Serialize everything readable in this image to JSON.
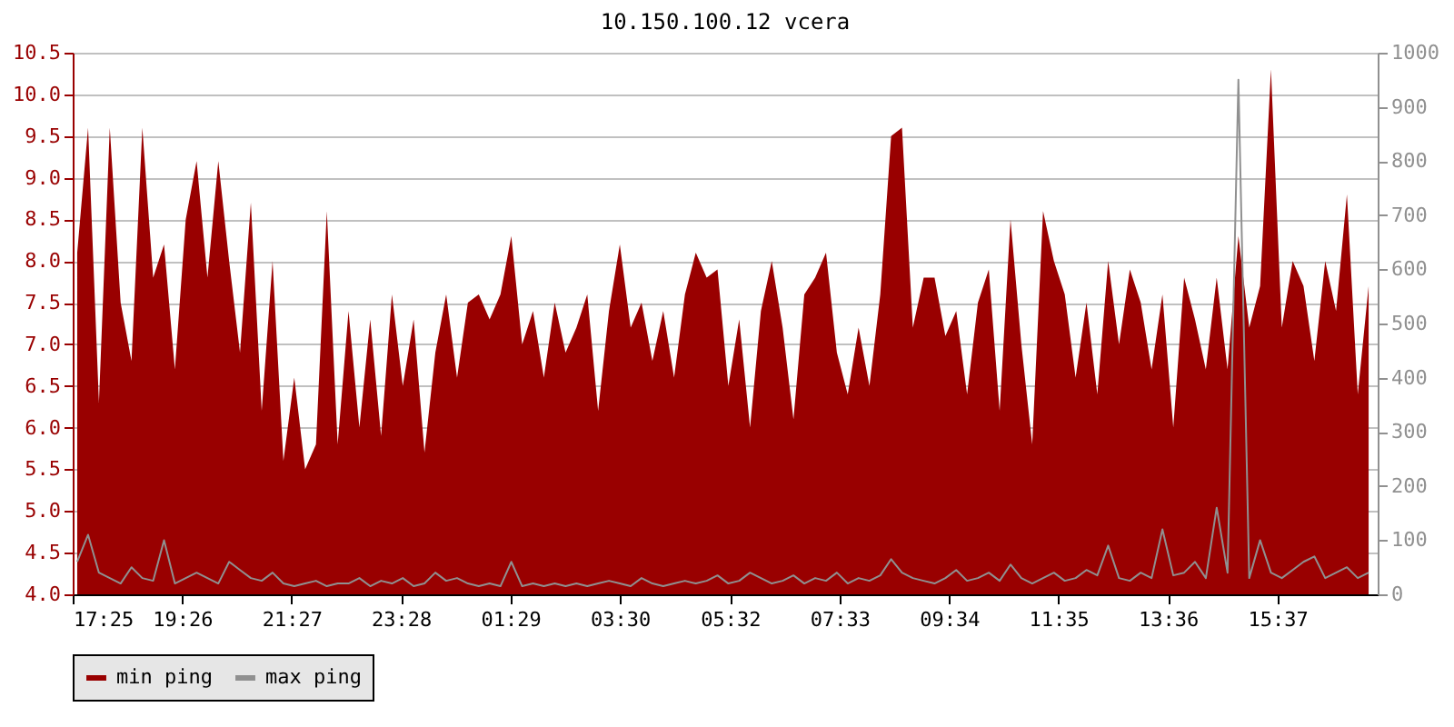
{
  "chart_data": {
    "type": "area",
    "title": "10.150.100.12 vcera",
    "x": [
      "--01-01T17:30",
      "--01-01T17:42",
      "--01-01T17:54",
      "--01-01T18:06",
      "--01-01T18:18",
      "--01-01T18:30",
      "--01-01T18:42",
      "--01-01T18:54",
      "--01-01T19:06",
      "--01-01T19:18",
      "--01-01T19:30",
      "--01-01T19:42",
      "--01-01T19:54",
      "--01-01T20:06",
      "--01-01T20:18",
      "--01-01T20:30",
      "--01-01T20:42",
      "--01-01T20:54",
      "--01-01T21:06",
      "--01-01T21:18",
      "--01-01T21:30",
      "--01-01T21:42",
      "--01-01T21:54",
      "--01-01T22:06",
      "--01-01T22:18",
      "--01-01T22:30",
      "--01-01T22:42",
      "--01-01T22:54",
      "--01-01T23:06",
      "--01-01T23:18",
      "--01-01T23:30",
      "--01-01T23:42",
      "--01-01T23:54",
      "--01-02T00:06",
      "--01-02T00:18",
      "--01-02T00:30",
      "--01-02T00:42",
      "--01-02T00:54",
      "--01-02T01:06",
      "--01-02T01:18",
      "--01-02T01:30",
      "--01-02T01:42",
      "--01-02T01:54",
      "--01-02T02:06",
      "--01-02T02:18",
      "--01-02T02:30",
      "--01-02T02:42",
      "--01-02T02:54",
      "--01-02T03:06",
      "--01-02T03:18",
      "--01-02T03:30",
      "--01-02T03:42",
      "--01-02T03:54",
      "--01-02T04:06",
      "--01-02T04:18",
      "--01-02T04:30",
      "--01-02T04:42",
      "--01-02T04:54",
      "--01-02T05:06",
      "--01-02T05:18",
      "--01-02T05:30",
      "--01-02T05:42",
      "--01-02T05:54",
      "--01-02T06:06",
      "--01-02T06:18",
      "--01-02T06:30",
      "--01-02T06:42",
      "--01-02T06:54",
      "--01-02T07:06",
      "--01-02T07:18",
      "--01-02T07:30",
      "--01-02T07:42",
      "--01-02T07:54",
      "--01-02T08:06",
      "--01-02T08:18",
      "--01-02T08:30",
      "--01-02T08:42",
      "--01-02T08:54",
      "--01-02T09:06",
      "--01-02T09:18",
      "--01-02T09:30",
      "--01-02T09:42",
      "--01-02T09:54",
      "--01-02T10:06",
      "--01-02T10:18",
      "--01-02T10:30",
      "--01-02T10:42",
      "--01-02T10:54",
      "--01-02T11:06",
      "--01-02T11:18",
      "--01-02T11:30",
      "--01-02T11:42",
      "--01-02T11:54",
      "--01-02T12:06",
      "--01-02T12:18",
      "--01-02T12:30",
      "--01-02T12:42",
      "--01-02T12:54",
      "--01-02T13:06",
      "--01-02T13:18",
      "--01-02T13:30",
      "--01-02T13:42",
      "--01-02T13:54",
      "--01-02T14:06",
      "--01-02T14:18",
      "--01-02T14:30",
      "--01-02T14:42",
      "--01-02T14:54",
      "--01-02T15:06",
      "--01-02T15:18",
      "--01-02T15:30",
      "--01-02T15:42",
      "--01-02T15:54",
      "--01-02T16:06",
      "--01-02T16:18",
      "--01-02T16:30",
      "--01-02T16:42",
      "--01-02T16:54",
      "--01-02T17:06",
      "--01-02T17:18"
    ],
    "series": [
      {
        "name": "min ping",
        "color": "#990000",
        "values": [
          8.1,
          9.6,
          6.3,
          9.6,
          7.5,
          6.8,
          9.6,
          7.8,
          8.2,
          6.7,
          8.5,
          9.2,
          7.8,
          9.2,
          8.0,
          6.9,
          8.7,
          6.2,
          8.0,
          5.6,
          6.6,
          5.5,
          5.8,
          8.6,
          5.8,
          7.4,
          6.0,
          7.3,
          5.9,
          7.6,
          6.5,
          7.3,
          5.7,
          6.9,
          7.6,
          6.6,
          7.5,
          7.6,
          7.3,
          7.6,
          8.3,
          7.0,
          7.4,
          6.6,
          7.5,
          6.9,
          7.2,
          7.6,
          6.2,
          7.4,
          8.2,
          7.2,
          7.5,
          6.8,
          7.4,
          6.6,
          7.6,
          8.1,
          7.8,
          7.9,
          6.5,
          7.3,
          6.0,
          7.4,
          8.0,
          7.2,
          6.1,
          7.6,
          7.8,
          8.1,
          6.9,
          6.4,
          7.2,
          6.5,
          7.6,
          9.5,
          9.6,
          7.2,
          7.8,
          7.8,
          7.1,
          7.4,
          6.4,
          7.5,
          7.9,
          6.2,
          8.5,
          7.0,
          5.8,
          8.6,
          8.0,
          7.6,
          6.6,
          7.5,
          6.4,
          8.0,
          7.0,
          7.9,
          7.5,
          6.7,
          7.6,
          6.0,
          7.8,
          7.3,
          6.7,
          7.8,
          6.7,
          8.3,
          7.2,
          7.7,
          10.3,
          7.2,
          8.0,
          7.7,
          6.8,
          8.0,
          7.4,
          8.8,
          6.4,
          7.7
        ]
      },
      {
        "name": "max ping",
        "color": "#909090",
        "type": "line",
        "axis": "y2",
        "values": [
          60,
          110,
          40,
          30,
          20,
          50,
          30,
          25,
          100,
          20,
          30,
          40,
          30,
          20,
          60,
          45,
          30,
          25,
          40,
          20,
          15,
          20,
          25,
          15,
          20,
          20,
          30,
          15,
          25,
          20,
          30,
          15,
          20,
          40,
          25,
          30,
          20,
          15,
          20,
          15,
          60,
          15,
          20,
          15,
          20,
          15,
          20,
          15,
          20,
          25,
          20,
          15,
          30,
          20,
          15,
          20,
          25,
          20,
          25,
          35,
          20,
          25,
          40,
          30,
          20,
          25,
          35,
          20,
          30,
          25,
          40,
          20,
          30,
          25,
          35,
          65,
          40,
          30,
          25,
          20,
          30,
          45,
          25,
          30,
          40,
          25,
          55,
          30,
          20,
          30,
          40,
          25,
          30,
          45,
          35,
          90,
          30,
          25,
          40,
          30,
          120,
          35,
          40,
          60,
          30,
          160,
          40,
          950,
          30,
          100,
          40,
          30,
          45,
          60,
          70,
          30,
          40,
          50,
          30,
          40
        ]
      }
    ],
    "xlim": [
      "--01-01T17:25",
      "--01-02T17:28"
    ],
    "xticks": [
      {
        "value": "--01-01T17:25",
        "label": "17:25"
      },
      {
        "value": "--01-01T19:26",
        "label": "19:26"
      },
      {
        "value": "--01-01T21:27",
        "label": "21:27"
      },
      {
        "value": "--01-01T23:28",
        "label": "23:28"
      },
      {
        "value": "--01-02T01:29",
        "label": "01:29"
      },
      {
        "value": "--01-02T03:30",
        "label": "03:30"
      },
      {
        "value": "--01-02T05:32",
        "label": "05:32"
      },
      {
        "value": "--01-02T07:33",
        "label": "07:33"
      },
      {
        "value": "--01-02T09:34",
        "label": "09:34"
      },
      {
        "value": "--01-02T11:35",
        "label": "11:35"
      },
      {
        "value": "--01-02T13:36",
        "label": "13:36"
      },
      {
        "value": "--01-02T15:37",
        "label": "15:37"
      }
    ],
    "ylim": [
      4,
      10.5
    ],
    "yticks": [
      {
        "value": 4,
        "label": "4.0"
      },
      {
        "value": 4.5,
        "label": "4.5"
      },
      {
        "value": 5,
        "label": "5.0"
      },
      {
        "value": 5.5,
        "label": "5.5"
      },
      {
        "value": 6,
        "label": "6.0"
      },
      {
        "value": 6.5,
        "label": "6.5"
      },
      {
        "value": 7,
        "label": "7.0"
      },
      {
        "value": 7.5,
        "label": "7.5"
      },
      {
        "value": 8,
        "label": "8.0"
      },
      {
        "value": 8.5,
        "label": "8.5"
      },
      {
        "value": 9,
        "label": "9.0"
      },
      {
        "value": 9.5,
        "label": "9.5"
      },
      {
        "value": 10,
        "label": "10.0"
      },
      {
        "value": 10.5,
        "label": "10.5"
      }
    ],
    "y2lim": [
      0,
      1000
    ],
    "y2ticks": [
      0,
      100,
      200,
      300,
      400,
      500,
      600,
      700,
      800,
      900,
      1000
    ],
    "grid": "y",
    "legend": "bottom"
  }
}
